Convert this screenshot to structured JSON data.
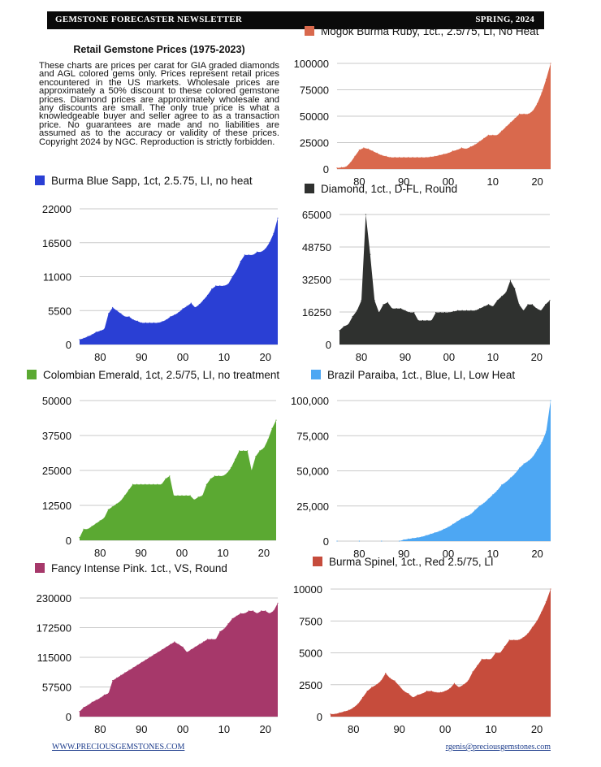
{
  "header": {
    "left": "GEMSTONE FORECASTER NEWSLETTER",
    "right": "SPRING, 2024"
  },
  "intro": {
    "title": "Retail Gemstone Prices (1975-2023)",
    "body": "These charts are prices per carat for GIA graded diamonds and AGL colored gems only. Prices represent retail prices encountered in the US markets. Wholesale prices are approximately a 50% discount to these colored gemstone prices. Diamond prices are approximately wholesale and any discounts are small. The only true price is what a knowledgeable buyer and seller agree to as a transaction price. No guarantees are made and no liabilities are assumed as to the accuracy or validity of these prices. Copyright 2024 by NGC. Reproduction is strictly forbidden."
  },
  "footer": {
    "left": "WWW.PRECIOUSGEMSTONES.COM",
    "right": "rgenis@preciousgemstones.com"
  },
  "chart_data": [
    {
      "type": "area",
      "title": "Mogok Burma Ruby, 1ct., 2.5/75, LI, No Heat",
      "color": "#d9694d",
      "xlim": [
        1975,
        2023
      ],
      "ylim": [
        0,
        100000
      ],
      "yticks": [
        0,
        25000,
        50000,
        75000,
        100000
      ],
      "ytick_labels": [
        "0",
        "25000",
        "50000",
        "75000",
        "100000"
      ],
      "xticks": [
        1980,
        1990,
        2000,
        2010,
        2020
      ],
      "xtick_labels": [
        "80",
        "90",
        "00",
        "10",
        "20"
      ],
      "x": [
        1975,
        1976,
        1977,
        1978,
        1979,
        1980,
        1981,
        1982,
        1983,
        1984,
        1985,
        1986,
        1987,
        1988,
        1989,
        1990,
        1991,
        1992,
        1993,
        1994,
        1995,
        1996,
        1997,
        1998,
        1999,
        2000,
        2001,
        2002,
        2003,
        2004,
        2005,
        2006,
        2007,
        2008,
        2009,
        2010,
        2011,
        2012,
        2013,
        2014,
        2015,
        2016,
        2017,
        2018,
        2019,
        2020,
        2021,
        2022,
        2023
      ],
      "values": [
        1000,
        1500,
        2000,
        6000,
        12000,
        18000,
        20000,
        19000,
        17000,
        15000,
        13000,
        12000,
        11000,
        11000,
        11000,
        11000,
        11000,
        11000,
        11000,
        11000,
        11000,
        11500,
        12000,
        13000,
        14000,
        15000,
        17000,
        18000,
        20000,
        19000,
        21000,
        23000,
        26000,
        29000,
        32000,
        32000,
        32000,
        36000,
        40000,
        44000,
        48000,
        52000,
        52000,
        52000,
        55000,
        62000,
        72000,
        85000,
        100000
      ]
    },
    {
      "type": "area",
      "title": "Burma Blue Sapp, 1ct, 2.5.75, LI, no heat",
      "color": "#2a3fd4",
      "xlim": [
        1975,
        2023
      ],
      "ylim": [
        0,
        22000
      ],
      "yticks": [
        0,
        5500,
        11000,
        16500,
        22000
      ],
      "ytick_labels": [
        "0",
        "5500",
        "11000",
        "16500",
        "22000"
      ],
      "xticks": [
        1980,
        1990,
        2000,
        2010,
        2020
      ],
      "xtick_labels": [
        "80",
        "90",
        "00",
        "10",
        "20"
      ],
      "x": [
        1975,
        1976,
        1977,
        1978,
        1979,
        1980,
        1981,
        1982,
        1983,
        1984,
        1985,
        1986,
        1987,
        1988,
        1989,
        1990,
        1991,
        1992,
        1993,
        1994,
        1995,
        1996,
        1997,
        1998,
        1999,
        2000,
        2001,
        2002,
        2003,
        2004,
        2005,
        2006,
        2007,
        2008,
        2009,
        2010,
        2011,
        2012,
        2013,
        2014,
        2015,
        2016,
        2017,
        2018,
        2019,
        2020,
        2021,
        2022,
        2023
      ],
      "values": [
        800,
        1000,
        1300,
        1600,
        2000,
        2200,
        2500,
        5000,
        6000,
        5500,
        5000,
        4500,
        4500,
        4000,
        3800,
        3500,
        3500,
        3500,
        3500,
        3500,
        3700,
        4000,
        4500,
        4800,
        5200,
        5800,
        6200,
        6700,
        6000,
        6500,
        7200,
        8000,
        9000,
        9500,
        9500,
        9500,
        9800,
        11000,
        12000,
        13500,
        14500,
        14500,
        14500,
        15000,
        15000,
        15500,
        16500,
        18000,
        20500
      ]
    },
    {
      "type": "area",
      "title": "Diamond, 1ct., D-FL, Round",
      "color": "#2f312f",
      "xlim": [
        1975,
        2023
      ],
      "ylim": [
        0,
        65000
      ],
      "yticks": [
        0,
        16250,
        32500,
        48750,
        65000
      ],
      "ytick_labels": [
        "0",
        "16250",
        "32500",
        "48750",
        "65000"
      ],
      "xticks": [
        1980,
        1990,
        2000,
        2010,
        2020
      ],
      "xtick_labels": [
        "80",
        "90",
        "00",
        "10",
        "20"
      ],
      "x": [
        1975,
        1976,
        1977,
        1978,
        1979,
        1980,
        1981,
        1982,
        1983,
        1984,
        1985,
        1986,
        1987,
        1988,
        1989,
        1990,
        1991,
        1992,
        1993,
        1994,
        1995,
        1996,
        1997,
        1998,
        1999,
        2000,
        2001,
        2002,
        2003,
        2004,
        2005,
        2006,
        2007,
        2008,
        2009,
        2010,
        2011,
        2012,
        2013,
        2014,
        2015,
        2016,
        2017,
        2018,
        2019,
        2020,
        2021,
        2022,
        2023
      ],
      "values": [
        7000,
        9000,
        10000,
        14000,
        17000,
        22000,
        65000,
        45000,
        22000,
        16000,
        20000,
        21000,
        18000,
        18000,
        18000,
        17000,
        16000,
        16000,
        12000,
        12000,
        12000,
        12000,
        16000,
        16000,
        16000,
        16000,
        16500,
        17000,
        17000,
        17000,
        17000,
        17000,
        18000,
        19000,
        20000,
        19000,
        22000,
        24000,
        26000,
        32000,
        28000,
        20000,
        17000,
        20000,
        20000,
        18000,
        17000,
        20000,
        22000
      ]
    },
    {
      "type": "area",
      "title": "Colombian Emerald, 1ct, 2.5/75, LI, no treatment",
      "color": "#5ba932",
      "xlim": [
        1975,
        2023
      ],
      "ylim": [
        0,
        50000
      ],
      "yticks": [
        0,
        12500,
        25000,
        37500,
        50000
      ],
      "ytick_labels": [
        "0",
        "12500",
        "25000",
        "37500",
        "50000"
      ],
      "xticks": [
        1980,
        1990,
        2000,
        2010,
        2020
      ],
      "xtick_labels": [
        "80",
        "90",
        "00",
        "10",
        "20"
      ],
      "x": [
        1975,
        1976,
        1977,
        1978,
        1979,
        1980,
        1981,
        1982,
        1983,
        1984,
        1985,
        1986,
        1987,
        1988,
        1989,
        1990,
        1991,
        1992,
        1993,
        1994,
        1995,
        1996,
        1997,
        1998,
        1999,
        2000,
        2001,
        2002,
        2003,
        2004,
        2005,
        2006,
        2007,
        2008,
        2009,
        2010,
        2011,
        2012,
        2013,
        2014,
        2015,
        2016,
        2017,
        2018,
        2019,
        2020,
        2021,
        2022,
        2023
      ],
      "values": [
        1000,
        4000,
        4000,
        5000,
        6000,
        7000,
        8000,
        11000,
        12000,
        13000,
        14000,
        16000,
        18000,
        20000,
        20000,
        20000,
        20000,
        20000,
        20000,
        20000,
        20000,
        22000,
        23000,
        16000,
        16000,
        16000,
        16000,
        16000,
        14500,
        15500,
        16000,
        20000,
        22000,
        23000,
        23000,
        23000,
        24000,
        26000,
        29000,
        32000,
        32000,
        32000,
        25000,
        30000,
        32000,
        33000,
        36000,
        40000,
        43000
      ]
    },
    {
      "type": "area",
      "title": "Brazil Paraiba, 1ct., Blue, LI, Low Heat",
      "color": "#4da7f3",
      "xlim": [
        1975,
        2023
      ],
      "ylim": [
        0,
        100000
      ],
      "yticks": [
        0,
        25000,
        50000,
        75000,
        100000
      ],
      "ytick_labels": [
        "0",
        "25,000",
        "50,000",
        "75,000",
        "100,000"
      ],
      "xticks": [
        1980,
        1990,
        2000,
        2010,
        2020
      ],
      "xtick_labels": [
        "80",
        "90",
        "00",
        "10",
        "20"
      ],
      "x": [
        1975,
        1980,
        1985,
        1989,
        1990,
        1991,
        1992,
        1993,
        1994,
        1995,
        1996,
        1997,
        1998,
        1999,
        2000,
        2001,
        2002,
        2003,
        2004,
        2005,
        2006,
        2007,
        2008,
        2009,
        2010,
        2011,
        2012,
        2013,
        2014,
        2015,
        2016,
        2017,
        2018,
        2019,
        2020,
        2021,
        2022,
        2023
      ],
      "values": [
        0,
        0,
        0,
        0,
        1000,
        1500,
        2000,
        2500,
        3000,
        4000,
        5000,
        6000,
        7000,
        8500,
        10000,
        12000,
        14000,
        16000,
        17500,
        19000,
        22000,
        25000,
        27000,
        30000,
        33000,
        36000,
        40000,
        42000,
        45000,
        48000,
        52000,
        55000,
        57000,
        60000,
        65000,
        70000,
        78000,
        100000
      ]
    },
    {
      "type": "area",
      "title": "Fancy Intense Pink. 1ct., VS, Round",
      "color": "#a6386a",
      "xlim": [
        1975,
        2023
      ],
      "ylim": [
        0,
        230000
      ],
      "yticks": [
        0,
        57500,
        115000,
        172500,
        230000
      ],
      "ytick_labels": [
        "0",
        "57500",
        "115000",
        "172500",
        "230000"
      ],
      "xticks": [
        1980,
        1990,
        2000,
        2010,
        2020
      ],
      "xtick_labels": [
        "80",
        "90",
        "00",
        "10",
        "20"
      ],
      "x": [
        1975,
        1976,
        1977,
        1978,
        1979,
        1980,
        1981,
        1982,
        1983,
        1984,
        1985,
        1986,
        1987,
        1988,
        1989,
        1990,
        1991,
        1992,
        1993,
        1994,
        1995,
        1996,
        1997,
        1998,
        1999,
        2000,
        2001,
        2002,
        2003,
        2004,
        2005,
        2006,
        2007,
        2008,
        2009,
        2010,
        2011,
        2012,
        2013,
        2014,
        2015,
        2016,
        2017,
        2018,
        2019,
        2020,
        2021,
        2022,
        2023
      ],
      "values": [
        10000,
        18000,
        22000,
        28000,
        32000,
        36000,
        42000,
        45000,
        70000,
        75000,
        80000,
        85000,
        90000,
        95000,
        100000,
        105000,
        110000,
        115000,
        120000,
        125000,
        130000,
        135000,
        140000,
        145000,
        140000,
        135000,
        125000,
        130000,
        135000,
        140000,
        145000,
        150000,
        150000,
        150000,
        165000,
        170000,
        180000,
        190000,
        195000,
        200000,
        200000,
        205000,
        205000,
        200000,
        205000,
        205000,
        200000,
        205000,
        220000
      ]
    },
    {
      "type": "area",
      "title": "Burma Spinel, 1ct., Red 2.5/75, LI",
      "color": "#c64c3c",
      "xlim": [
        1975,
        2023
      ],
      "ylim": [
        0,
        10000
      ],
      "yticks": [
        0,
        2500,
        5000,
        7500,
        10000
      ],
      "ytick_labels": [
        "0",
        "2500",
        "5000",
        "7500",
        "10000"
      ],
      "xticks": [
        1980,
        1990,
        2000,
        2010,
        2020
      ],
      "xtick_labels": [
        "80",
        "90",
        "00",
        "10",
        "20"
      ],
      "x": [
        1975,
        1976,
        1977,
        1978,
        1979,
        1980,
        1981,
        1982,
        1983,
        1984,
        1985,
        1986,
        1987,
        1988,
        1989,
        1990,
        1991,
        1992,
        1993,
        1994,
        1995,
        1996,
        1997,
        1998,
        1999,
        2000,
        2001,
        2002,
        2003,
        2004,
        2005,
        2006,
        2007,
        2008,
        2009,
        2010,
        2011,
        2012,
        2013,
        2014,
        2015,
        2016,
        2017,
        2018,
        2019,
        2020,
        2021,
        2022,
        2023
      ],
      "values": [
        200,
        200,
        300,
        400,
        500,
        700,
        1000,
        1500,
        2000,
        2300,
        2500,
        2800,
        3400,
        3000,
        2800,
        2400,
        2000,
        1800,
        1500,
        1700,
        1800,
        2000,
        2000,
        1900,
        1900,
        2000,
        2200,
        2600,
        2300,
        2500,
        2800,
        3500,
        4000,
        4500,
        4500,
        4500,
        5000,
        5000,
        5500,
        6000,
        6000,
        6000,
        6200,
        6500,
        7000,
        7500,
        8200,
        9000,
        10000
      ]
    }
  ]
}
